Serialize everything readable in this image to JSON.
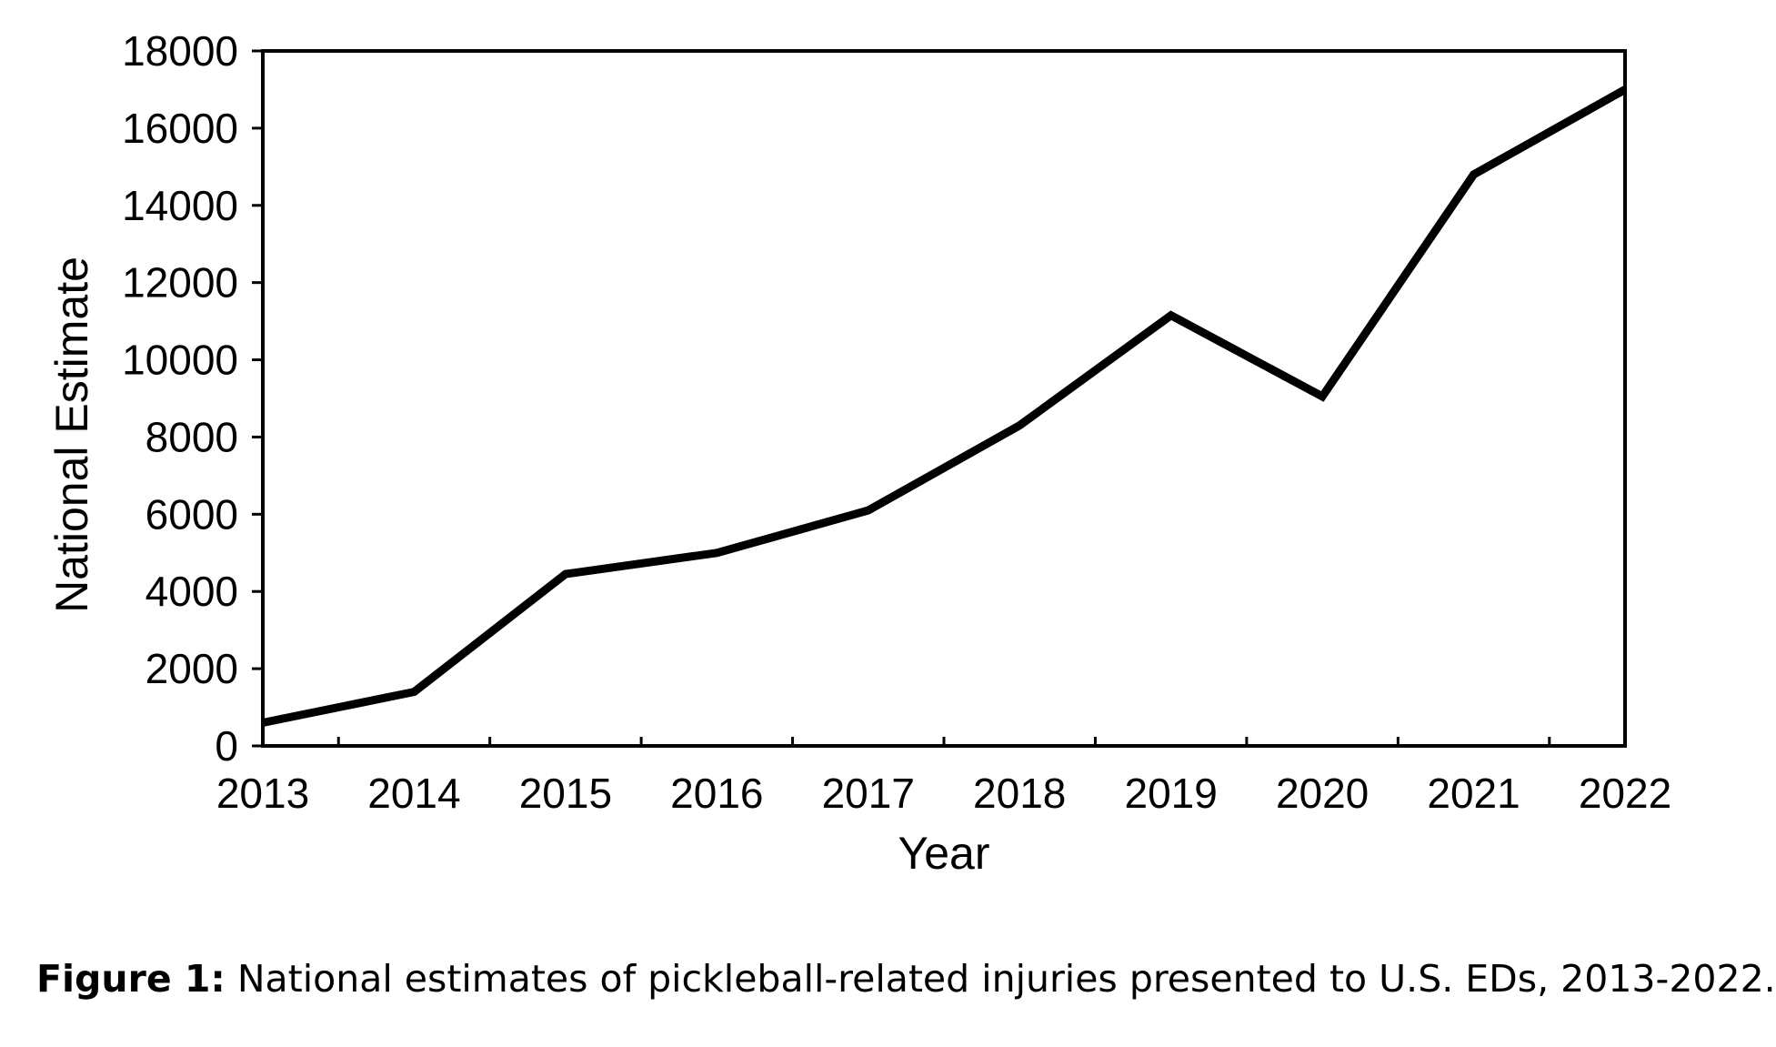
{
  "chart_data": {
    "type": "line",
    "title": "",
    "xlabel": "Year",
    "ylabel": "National Estimate",
    "x": [
      "2013",
      "2014",
      "2015",
      "2016",
      "2017",
      "2018",
      "2019",
      "2020",
      "2021",
      "2022"
    ],
    "series": [
      {
        "values": [
          600,
          1400,
          4450,
          5000,
          6100,
          8300,
          11150,
          9050,
          14800,
          17000
        ]
      }
    ],
    "ylim": [
      0,
      18000
    ],
    "yticks": [
      0,
      2000,
      4000,
      6000,
      8000,
      10000,
      12000,
      14000,
      16000,
      18000
    ],
    "grid": false,
    "legend": "none",
    "line_color": "#000000"
  },
  "caption": {
    "label": "Figure 1:",
    "text": " National estimates of pickleball-related injuries presented to U.S. EDs, 2013-2022."
  }
}
